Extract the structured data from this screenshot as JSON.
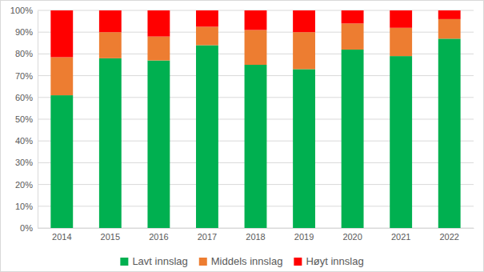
{
  "chart_data": {
    "type": "bar",
    "stacked": true,
    "grid": true,
    "legend": "bottom",
    "categories": [
      "2014",
      "2015",
      "2016",
      "2017",
      "2018",
      "2019",
      "2020",
      "2021",
      "2022"
    ],
    "series": [
      {
        "name": "Lavt innslag",
        "color": "#00b050",
        "values": [
          61,
          78,
          77,
          84,
          75,
          73,
          82,
          79,
          87
        ]
      },
      {
        "name": "Middels innslag",
        "color": "#ed7d31",
        "values": [
          17.5,
          12,
          11,
          8.5,
          16,
          17,
          12,
          13,
          9
        ]
      },
      {
        "name": "Høyt innslag",
        "color": "#ff0000",
        "values": [
          21.5,
          10,
          12,
          7.5,
          9,
          10,
          6,
          8,
          4
        ]
      }
    ],
    "ylim": [
      0,
      100
    ],
    "yticks": [
      {
        "value": 0,
        "label": "0%"
      },
      {
        "value": 10,
        "label": "10%"
      },
      {
        "value": 20,
        "label": "20%"
      },
      {
        "value": 30,
        "label": "30%"
      },
      {
        "value": 40,
        "label": "40%"
      },
      {
        "value": 50,
        "label": "50%"
      },
      {
        "value": 60,
        "label": "60%"
      },
      {
        "value": 70,
        "label": "70%"
      },
      {
        "value": 80,
        "label": "80%"
      },
      {
        "value": 90,
        "label": "90%"
      },
      {
        "value": 100,
        "label": "100%"
      }
    ]
  }
}
